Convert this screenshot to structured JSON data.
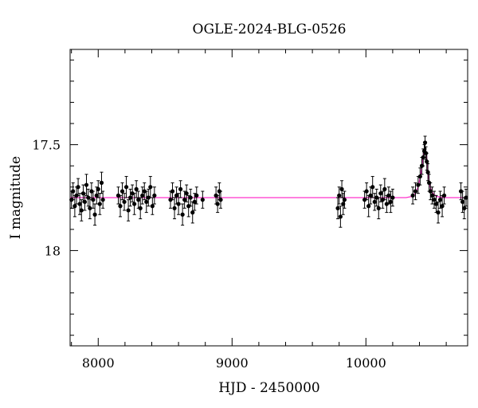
{
  "chart_data": {
    "type": "scatter",
    "title": "OGLE-2024-BLG-0526",
    "xlabel": "HJD - 2450000",
    "ylabel": "I magnitude",
    "xlim": [
      7790,
      10760
    ],
    "ylim": [
      18.45,
      17.05
    ],
    "y_inverted": true,
    "x_ticks": [
      8000,
      9000,
      10000
    ],
    "y_ticks": [
      17.5,
      18
    ],
    "y_tick_labels": [
      "17.5",
      "18"
    ],
    "baseline_magnitude": 17.75,
    "colors": {
      "points": "#000000",
      "model": "#ff33cc"
    },
    "model_curve": {
      "x": [
        7790,
        10300,
        10340,
        10370,
        10390,
        10410,
        10425,
        10435,
        10442,
        10448,
        10455,
        10465,
        10480,
        10500,
        10530,
        10580,
        10650,
        10760
      ],
      "y": [
        17.75,
        17.75,
        17.745,
        17.73,
        17.7,
        17.64,
        17.57,
        17.53,
        17.52,
        17.53,
        17.57,
        17.64,
        17.7,
        17.73,
        17.745,
        17.75,
        17.75,
        17.75
      ]
    },
    "series": [
      {
        "x": 7800,
        "y": 17.76,
        "err": 0.04
      },
      {
        "x": 7812,
        "y": 17.72,
        "err": 0.04
      },
      {
        "x": 7825,
        "y": 17.79,
        "err": 0.05
      },
      {
        "x": 7838,
        "y": 17.74,
        "err": 0.04
      },
      {
        "x": 7850,
        "y": 17.7,
        "err": 0.04
      },
      {
        "x": 7862,
        "y": 17.78,
        "err": 0.05
      },
      {
        "x": 7875,
        "y": 17.81,
        "err": 0.05
      },
      {
        "x": 7888,
        "y": 17.73,
        "err": 0.04
      },
      {
        "x": 7900,
        "y": 17.77,
        "err": 0.04
      },
      {
        "x": 7912,
        "y": 17.69,
        "err": 0.05
      },
      {
        "x": 7925,
        "y": 17.75,
        "err": 0.04
      },
      {
        "x": 7938,
        "y": 17.8,
        "err": 0.05
      },
      {
        "x": 7950,
        "y": 17.72,
        "err": 0.04
      },
      {
        "x": 7962,
        "y": 17.76,
        "err": 0.04
      },
      {
        "x": 7975,
        "y": 17.83,
        "err": 0.05
      },
      {
        "x": 7988,
        "y": 17.74,
        "err": 0.04
      },
      {
        "x": 8000,
        "y": 17.71,
        "err": 0.04
      },
      {
        "x": 8012,
        "y": 17.78,
        "err": 0.05
      },
      {
        "x": 8025,
        "y": 17.68,
        "err": 0.05
      },
      {
        "x": 8035,
        "y": 17.76,
        "err": 0.04
      },
      {
        "x": 8150,
        "y": 17.74,
        "err": 0.04
      },
      {
        "x": 8165,
        "y": 17.79,
        "err": 0.05
      },
      {
        "x": 8180,
        "y": 17.72,
        "err": 0.04
      },
      {
        "x": 8195,
        "y": 17.77,
        "err": 0.04
      },
      {
        "x": 8210,
        "y": 17.7,
        "err": 0.05
      },
      {
        "x": 8225,
        "y": 17.81,
        "err": 0.05
      },
      {
        "x": 8240,
        "y": 17.75,
        "err": 0.04
      },
      {
        "x": 8255,
        "y": 17.73,
        "err": 0.04
      },
      {
        "x": 8270,
        "y": 17.78,
        "err": 0.05
      },
      {
        "x": 8285,
        "y": 17.71,
        "err": 0.04
      },
      {
        "x": 8300,
        "y": 17.76,
        "err": 0.04
      },
      {
        "x": 8315,
        "y": 17.8,
        "err": 0.05
      },
      {
        "x": 8330,
        "y": 17.74,
        "err": 0.04
      },
      {
        "x": 8345,
        "y": 17.72,
        "err": 0.04
      },
      {
        "x": 8360,
        "y": 17.77,
        "err": 0.05
      },
      {
        "x": 8375,
        "y": 17.75,
        "err": 0.04
      },
      {
        "x": 8390,
        "y": 17.7,
        "err": 0.05
      },
      {
        "x": 8405,
        "y": 17.79,
        "err": 0.04
      },
      {
        "x": 8420,
        "y": 17.74,
        "err": 0.04
      },
      {
        "x": 8540,
        "y": 17.76,
        "err": 0.04
      },
      {
        "x": 8555,
        "y": 17.72,
        "err": 0.04
      },
      {
        "x": 8570,
        "y": 17.8,
        "err": 0.05
      },
      {
        "x": 8585,
        "y": 17.74,
        "err": 0.04
      },
      {
        "x": 8600,
        "y": 17.78,
        "err": 0.05
      },
      {
        "x": 8615,
        "y": 17.71,
        "err": 0.04
      },
      {
        "x": 8630,
        "y": 17.83,
        "err": 0.05
      },
      {
        "x": 8645,
        "y": 17.76,
        "err": 0.04
      },
      {
        "x": 8660,
        "y": 17.73,
        "err": 0.04
      },
      {
        "x": 8675,
        "y": 17.79,
        "err": 0.05
      },
      {
        "x": 8690,
        "y": 17.75,
        "err": 0.04
      },
      {
        "x": 8705,
        "y": 17.82,
        "err": 0.05
      },
      {
        "x": 8720,
        "y": 17.77,
        "err": 0.04
      },
      {
        "x": 8735,
        "y": 17.74,
        "err": 0.04
      },
      {
        "x": 8780,
        "y": 17.76,
        "err": 0.04
      },
      {
        "x": 8880,
        "y": 17.74,
        "err": 0.04
      },
      {
        "x": 8892,
        "y": 17.78,
        "err": 0.04
      },
      {
        "x": 8905,
        "y": 17.72,
        "err": 0.04
      },
      {
        "x": 8915,
        "y": 17.76,
        "err": 0.04
      },
      {
        "x": 9790,
        "y": 17.8,
        "err": 0.05
      },
      {
        "x": 9800,
        "y": 17.74,
        "err": 0.04
      },
      {
        "x": 9810,
        "y": 17.84,
        "err": 0.05
      },
      {
        "x": 9820,
        "y": 17.71,
        "err": 0.04
      },
      {
        "x": 9830,
        "y": 17.78,
        "err": 0.05
      },
      {
        "x": 9840,
        "y": 17.76,
        "err": 0.04
      },
      {
        "x": 9990,
        "y": 17.76,
        "err": 0.04
      },
      {
        "x": 10005,
        "y": 17.72,
        "err": 0.04
      },
      {
        "x": 10020,
        "y": 17.79,
        "err": 0.05
      },
      {
        "x": 10035,
        "y": 17.74,
        "err": 0.04
      },
      {
        "x": 10050,
        "y": 17.7,
        "err": 0.05
      },
      {
        "x": 10065,
        "y": 17.77,
        "err": 0.04
      },
      {
        "x": 10080,
        "y": 17.75,
        "err": 0.04
      },
      {
        "x": 10095,
        "y": 17.8,
        "err": 0.05
      },
      {
        "x": 10110,
        "y": 17.73,
        "err": 0.04
      },
      {
        "x": 10125,
        "y": 17.76,
        "err": 0.04
      },
      {
        "x": 10140,
        "y": 17.71,
        "err": 0.05
      },
      {
        "x": 10155,
        "y": 17.78,
        "err": 0.04
      },
      {
        "x": 10170,
        "y": 17.74,
        "err": 0.04
      },
      {
        "x": 10185,
        "y": 17.77,
        "err": 0.05
      },
      {
        "x": 10200,
        "y": 17.75,
        "err": 0.04
      },
      {
        "x": 10350,
        "y": 17.74,
        "err": 0.04
      },
      {
        "x": 10370,
        "y": 17.72,
        "err": 0.04
      },
      {
        "x": 10390,
        "y": 17.69,
        "err": 0.04
      },
      {
        "x": 10405,
        "y": 17.65,
        "err": 0.04
      },
      {
        "x": 10418,
        "y": 17.6,
        "err": 0.04
      },
      {
        "x": 10428,
        "y": 17.56,
        "err": 0.04
      },
      {
        "x": 10436,
        "y": 17.53,
        "err": 0.03
      },
      {
        "x": 10442,
        "y": 17.49,
        "err": 0.03
      },
      {
        "x": 10448,
        "y": 17.54,
        "err": 0.03
      },
      {
        "x": 10455,
        "y": 17.58,
        "err": 0.04
      },
      {
        "x": 10463,
        "y": 17.63,
        "err": 0.04
      },
      {
        "x": 10472,
        "y": 17.68,
        "err": 0.04
      },
      {
        "x": 10482,
        "y": 17.72,
        "err": 0.04
      },
      {
        "x": 10495,
        "y": 17.74,
        "err": 0.04
      },
      {
        "x": 10510,
        "y": 17.76,
        "err": 0.04
      },
      {
        "x": 10525,
        "y": 17.78,
        "err": 0.04
      },
      {
        "x": 10540,
        "y": 17.82,
        "err": 0.05
      },
      {
        "x": 10555,
        "y": 17.76,
        "err": 0.04
      },
      {
        "x": 10570,
        "y": 17.79,
        "err": 0.05
      },
      {
        "x": 10585,
        "y": 17.74,
        "err": 0.04
      },
      {
        "x": 10710,
        "y": 17.72,
        "err": 0.04
      },
      {
        "x": 10722,
        "y": 17.77,
        "err": 0.05
      },
      {
        "x": 10735,
        "y": 17.8,
        "err": 0.05
      },
      {
        "x": 10748,
        "y": 17.75,
        "err": 0.04
      }
    ]
  }
}
